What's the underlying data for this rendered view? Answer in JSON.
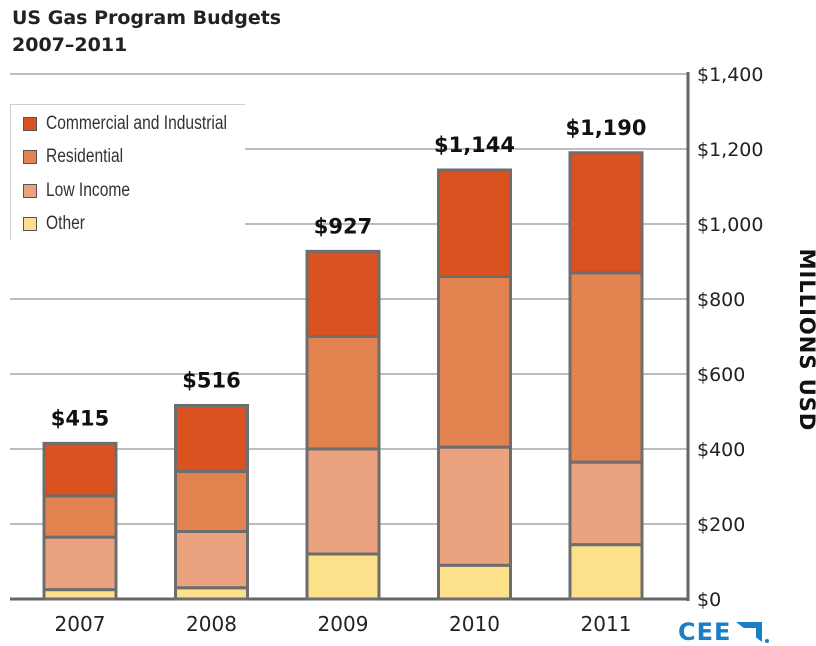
{
  "title_line1": "US Gas Program Budgets",
  "title_line2": "2007–2011",
  "logo": "CEE",
  "colors": {
    "commercial": "#d9521f",
    "residential": "#e2824f",
    "low_income": "#eba27e",
    "other": "#fce08a",
    "outline": "#6d6d6d",
    "grid": "#bdbdbd"
  },
  "chart_data": {
    "type": "bar",
    "stacked": true,
    "title": "US Gas Program Budgets 2007–2011",
    "ylabel": "MILLIONS USD",
    "ylim": [
      0,
      1400
    ],
    "y_ticks": [
      "$0",
      "$200",
      "$400",
      "$600",
      "$800",
      "$1,000",
      "$1,200",
      "$1,400"
    ],
    "y_tick_values": [
      0,
      200,
      400,
      600,
      800,
      1000,
      1200,
      1400
    ],
    "categories": [
      "2007",
      "2008",
      "2009",
      "2010",
      "2011"
    ],
    "totals_labels": [
      "$415",
      "$516",
      "$927",
      "$1,144",
      "$1,190"
    ],
    "totals": [
      415,
      516,
      927,
      1144,
      1190
    ],
    "legend_position": "top-left",
    "grid": true,
    "series": [
      {
        "name": "Other",
        "values": [
          25,
          30,
          120,
          90,
          145
        ]
      },
      {
        "name": "Low Income",
        "values": [
          140,
          150,
          280,
          315,
          220
        ]
      },
      {
        "name": "Residential",
        "values": [
          110,
          160,
          300,
          455,
          505
        ]
      },
      {
        "name": "Commercial and Industrial",
        "values": [
          140,
          176,
          227,
          284,
          320
        ]
      }
    ]
  },
  "legend": [
    {
      "label": "Commercial and Industrial",
      "color": "#d9521f"
    },
    {
      "label": "Residential",
      "color": "#e2824f"
    },
    {
      "label": "Low Income",
      "color": "#eba27e"
    },
    {
      "label": "Other",
      "color": "#fce08a"
    }
  ]
}
